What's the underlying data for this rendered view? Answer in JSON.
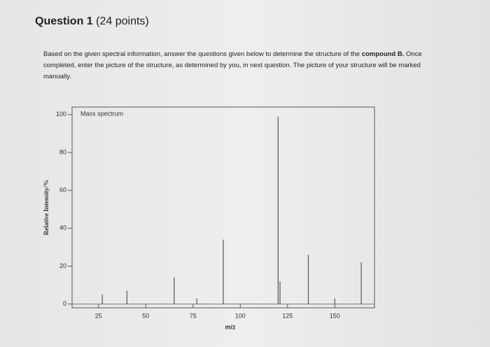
{
  "question": {
    "title": "Question 1",
    "points": "(24 points)",
    "text_before": "Based on the given spectral information, answer the questions given below to determine the structure of the ",
    "text_bold": "compound B.",
    "text_after": " Once completed, enter the picture of the structure, as determined by you, in next question. The picture of your structure will be marked manually."
  },
  "chart_data": {
    "type": "stem",
    "title": "Mass spectrum",
    "x_label": "m/z",
    "y_label": "Relative Intensity/%",
    "x": [
      27,
      40,
      65,
      77,
      91,
      120,
      121,
      136,
      150,
      164
    ],
    "values": [
      5,
      7,
      14,
      3,
      34,
      99,
      12,
      26,
      3,
      22
    ],
    "color": "#555555",
    "xlim": [
      11,
      171
    ],
    "ylim": [
      -2,
      104
    ],
    "xticks": [
      25,
      50,
      75,
      100,
      125,
      150
    ],
    "yticks": [
      0,
      20,
      40,
      60,
      80,
      100
    ]
  }
}
